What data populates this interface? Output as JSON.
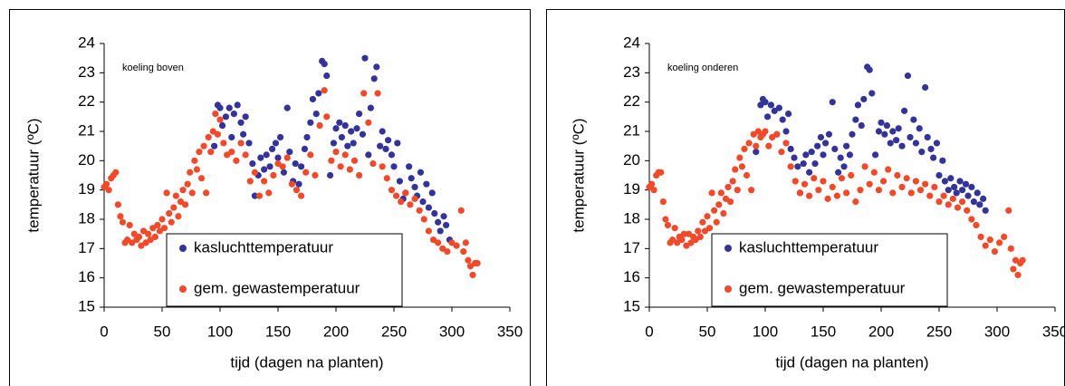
{
  "chart_data": [
    {
      "type": "scatter",
      "annotation": "koeling boven",
      "xlabel": "tijd (dagen na planten)",
      "ylabel": "temperatuur (ºC)",
      "xlim": [
        0,
        350
      ],
      "xticks": [
        0,
        50,
        100,
        150,
        200,
        250,
        300,
        350
      ],
      "ylim": [
        15,
        24
      ],
      "yticks": [
        15,
        16,
        17,
        18,
        19,
        20,
        21,
        22,
        23,
        24
      ],
      "legend": "lower center",
      "series": [
        {
          "name": "kasluchttemperatuur",
          "color": "#333399",
          "x": [
            95,
            98,
            100,
            102,
            105,
            108,
            110,
            112,
            115,
            118,
            120,
            122,
            125,
            128,
            130,
            133,
            135,
            138,
            140,
            143,
            145,
            148,
            150,
            152,
            155,
            158,
            160,
            163,
            165,
            168,
            170,
            173,
            175,
            178,
            180,
            183,
            185,
            188,
            190,
            192,
            195,
            198,
            200,
            203,
            205,
            208,
            210,
            213,
            215,
            218,
            220,
            223,
            225,
            228,
            230,
            233,
            235,
            238,
            240,
            243,
            245,
            248,
            250,
            253,
            255,
            258,
            260,
            263,
            265,
            268,
            270,
            273,
            275,
            278,
            280,
            283,
            285,
            288,
            290,
            293,
            295,
            298
          ],
          "values": [
            20.5,
            21.9,
            21.8,
            21.2,
            21.5,
            21.8,
            20.8,
            21.6,
            21.9,
            21.3,
            20.9,
            21.5,
            20.6,
            19.9,
            18.8,
            19.5,
            20.1,
            19.7,
            20.2,
            19.8,
            20.4,
            20.6,
            20.1,
            20.8,
            19.6,
            21.8,
            20.3,
            19.3,
            19.9,
            19.2,
            19.8,
            20.4,
            20.8,
            21.3,
            22.1,
            21.6,
            22.3,
            23.4,
            23.3,
            22.9,
            19.5,
            20.6,
            21.1,
            21.3,
            20.8,
            21.2,
            20.5,
            21.0,
            20.6,
            21.1,
            21.6,
            20.9,
            23.5,
            20.2,
            21.8,
            22.8,
            23.2,
            20.5,
            21.0,
            20.4,
            20.7,
            20.2,
            19.8,
            20.6,
            19.3,
            18.7,
            18.9,
            19.8,
            19.4,
            19.1,
            18.8,
            19.6,
            18.6,
            19.2,
            18.4,
            18.9,
            18.2,
            17.9,
            17.6,
            18.1,
            17.8,
            17.3
          ]
        },
        {
          "name": "gem. gewastemperatuur",
          "color": "#f04a2a",
          "x": [
            0,
            2,
            4,
            6,
            8,
            10,
            12,
            14,
            16,
            18,
            20,
            22,
            24,
            26,
            28,
            30,
            32,
            34,
            36,
            38,
            40,
            42,
            44,
            46,
            48,
            50,
            52,
            54,
            56,
            58,
            60,
            62,
            64,
            66,
            68,
            70,
            72,
            74,
            76,
            78,
            80,
            82,
            84,
            86,
            88,
            90,
            92,
            94,
            96,
            98,
            100,
            103,
            106,
            110,
            114,
            118,
            122,
            126,
            130,
            134,
            138,
            142,
            146,
            150,
            154,
            158,
            162,
            166,
            170,
            174,
            178,
            182,
            186,
            190,
            192,
            196,
            200,
            204,
            208,
            212,
            216,
            220,
            224,
            228,
            232,
            236,
            240,
            244,
            248,
            252,
            256,
            260,
            264,
            268,
            272,
            276,
            280,
            284,
            288,
            292,
            296,
            300,
            304,
            308,
            310,
            312,
            314,
            316,
            318,
            320,
            322
          ],
          "values": [
            19.1,
            19.2,
            19.0,
            19.4,
            19.5,
            19.6,
            18.5,
            18.1,
            17.9,
            17.2,
            17.3,
            17.8,
            17.2,
            17.5,
            17.3,
            17.4,
            17.1,
            17.6,
            17.2,
            17.5,
            17.3,
            17.7,
            17.4,
            17.8,
            17.6,
            18.0,
            17.7,
            18.9,
            18.2,
            17.9,
            18.4,
            18.8,
            18.1,
            18.6,
            19.0,
            18.5,
            19.2,
            19.6,
            18.9,
            20.0,
            19.7,
            20.3,
            19.4,
            20.5,
            18.9,
            20.8,
            20.3,
            21.0,
            21.6,
            20.9,
            21.4,
            20.6,
            20.2,
            20.3,
            20.0,
            20.6,
            20.2,
            19.3,
            19.6,
            18.8,
            19.3,
            18.9,
            19.5,
            19.9,
            19.8,
            20.1,
            19.2,
            19.0,
            18.8,
            19.6,
            20.2,
            19.5,
            21.2,
            22.4,
            21.5,
            20.0,
            20.3,
            19.8,
            20.2,
            19.7,
            20.0,
            19.5,
            22.3,
            21.3,
            19.9,
            22.3,
            19.8,
            19.4,
            19.0,
            18.8,
            18.6,
            18.9,
            18.5,
            18.7,
            18.3,
            18.0,
            17.6,
            17.3,
            17.2,
            17.0,
            16.9,
            17.2,
            17.1,
            18.3,
            16.9,
            17.2,
            16.6,
            16.4,
            16.1,
            16.5,
            16.5
          ]
        }
      ]
    },
    {
      "type": "scatter",
      "annotation": "koeling onderen",
      "xlabel": "tijd (dagen na planten)",
      "ylabel": "temperatuur (ºC)",
      "xlim": [
        0,
        350
      ],
      "xticks": [
        0,
        50,
        100,
        150,
        200,
        250,
        300,
        350
      ],
      "ylim": [
        15,
        24
      ],
      "yticks": [
        15,
        16,
        17,
        18,
        19,
        20,
        21,
        22,
        23,
        24
      ],
      "legend": "lower center",
      "series": [
        {
          "name": "kasluchttemperatuur",
          "color": "#333399",
          "x": [
            92,
            96,
            98,
            100,
            102,
            105,
            108,
            110,
            112,
            115,
            118,
            120,
            122,
            125,
            128,
            130,
            133,
            135,
            138,
            140,
            143,
            145,
            148,
            150,
            152,
            155,
            158,
            160,
            163,
            165,
            168,
            170,
            173,
            175,
            178,
            180,
            183,
            185,
            188,
            190,
            192,
            195,
            198,
            200,
            203,
            205,
            208,
            210,
            213,
            215,
            218,
            220,
            223,
            225,
            228,
            230,
            233,
            235,
            238,
            240,
            243,
            245,
            248,
            250,
            253,
            255,
            258,
            260,
            263,
            265,
            268,
            270,
            273,
            275,
            278,
            280,
            283,
            285,
            288,
            290
          ],
          "values": [
            20.3,
            21.9,
            22.1,
            22.0,
            21.5,
            21.9,
            21.7,
            20.9,
            21.8,
            21.4,
            21.0,
            21.6,
            20.4,
            20.1,
            19.8,
            18.9,
            19.9,
            20.2,
            19.6,
            20.3,
            19.9,
            20.5,
            20.8,
            20.2,
            20.6,
            20.9,
            22.0,
            20.4,
            19.6,
            20.1,
            19.8,
            20.5,
            20.2,
            20.9,
            21.4,
            21.9,
            21.2,
            22.1,
            23.2,
            23.1,
            22.3,
            20.2,
            21.0,
            21.3,
            20.9,
            21.2,
            20.6,
            21.0,
            20.7,
            21.1,
            20.5,
            21.7,
            22.9,
            20.8,
            21.4,
            20.6,
            21.1,
            20.3,
            22.5,
            20.8,
            20.4,
            20.1,
            20.6,
            19.5,
            20.0,
            19.3,
            19.0,
            19.4,
            19.1,
            18.9,
            19.3,
            19.0,
            19.2,
            18.8,
            19.1,
            18.6,
            18.9,
            18.5,
            18.7,
            18.3
          ]
        },
        {
          "name": "gem. gewastemperatuur",
          "color": "#f04a2a",
          "x": [
            0,
            2,
            4,
            6,
            8,
            10,
            12,
            14,
            16,
            18,
            20,
            22,
            24,
            26,
            28,
            30,
            32,
            34,
            36,
            38,
            40,
            42,
            44,
            46,
            48,
            50,
            52,
            54,
            56,
            58,
            60,
            62,
            64,
            66,
            68,
            70,
            72,
            74,
            76,
            78,
            80,
            82,
            84,
            86,
            88,
            90,
            92,
            94,
            96,
            98,
            100,
            103,
            106,
            110,
            114,
            118,
            122,
            126,
            130,
            134,
            138,
            142,
            146,
            150,
            154,
            158,
            162,
            166,
            170,
            174,
            178,
            182,
            186,
            190,
            194,
            198,
            202,
            206,
            210,
            214,
            218,
            222,
            226,
            230,
            234,
            238,
            242,
            246,
            250,
            254,
            258,
            262,
            266,
            270,
            274,
            278,
            282,
            286,
            290,
            294,
            298,
            302,
            306,
            310,
            312,
            314,
            316,
            318,
            320,
            322
          ],
          "values": [
            19.1,
            19.2,
            19.0,
            19.5,
            19.6,
            19.6,
            18.6,
            18.0,
            17.8,
            17.2,
            17.3,
            17.7,
            17.2,
            17.4,
            17.3,
            17.5,
            17.1,
            17.5,
            17.2,
            17.4,
            17.3,
            17.6,
            17.4,
            17.9,
            17.6,
            18.1,
            17.7,
            18.9,
            18.3,
            17.9,
            18.5,
            18.9,
            18.2,
            18.7,
            19.1,
            18.6,
            19.3,
            19.7,
            19.0,
            20.1,
            19.8,
            20.4,
            19.5,
            20.6,
            19.0,
            20.9,
            20.5,
            21.0,
            20.8,
            20.9,
            21.0,
            20.5,
            20.8,
            20.9,
            20.3,
            20.6,
            19.8,
            19.3,
            18.9,
            19.2,
            18.8,
            19.4,
            19.0,
            19.3,
            18.7,
            19.1,
            18.8,
            19.4,
            18.9,
            19.5,
            18.6,
            19.0,
            19.8,
            19.2,
            19.6,
            19.0,
            19.3,
            19.7,
            18.9,
            19.5,
            19.1,
            19.4,
            18.9,
            19.3,
            19.0,
            19.2,
            18.8,
            19.1,
            18.6,
            18.8,
            18.5,
            18.7,
            18.4,
            18.6,
            18.3,
            18.0,
            17.8,
            17.4,
            17.1,
            17.3,
            16.9,
            17.2,
            17.4,
            18.3,
            17.0,
            16.3,
            16.6,
            16.1,
            16.5,
            16.6
          ]
        }
      ]
    }
  ]
}
